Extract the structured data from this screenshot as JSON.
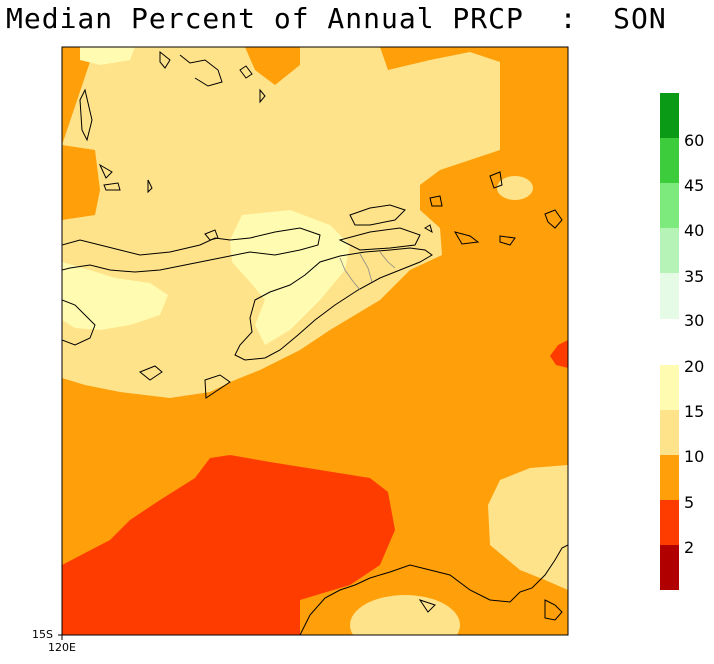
{
  "title": "Median Percent of Annual PRCP  :  SON",
  "axes": {
    "lat_label": "15S",
    "lon_label": "120E"
  },
  "colorbar_wet": {
    "labels": [
      "60",
      "45",
      "40",
      "35",
      "30"
    ],
    "colors": [
      "#0a9a15",
      "#3ccc3c",
      "#7dea7d",
      "#b6f3b6",
      "#e6fbe6"
    ]
  },
  "colorbar_dry": {
    "labels": [
      "20",
      "15",
      "10",
      "5",
      "2"
    ],
    "colors": [
      "#fffbb0",
      "#ffe38a",
      "#ff9f0a",
      "#ff3c00",
      "#b00000"
    ]
  },
  "palette": {
    "light_yellow": "#fffbb0",
    "yellow": "#ffe38a",
    "orange": "#ff9f0a",
    "red": "#ff3c00",
    "dark_red": "#b00000"
  }
}
